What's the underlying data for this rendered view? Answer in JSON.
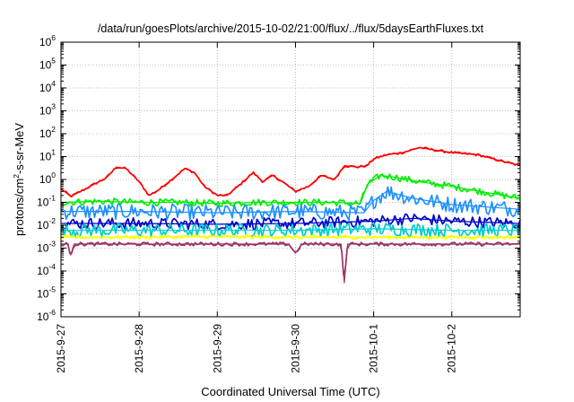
{
  "chart_data": {
    "type": "line",
    "title": "/data/run/goesPlots/archive/2015-10-02/21:00/flux/../flux/5daysEarthFluxes.txt",
    "xlabel": "Coordinated Universal Time (UTC)",
    "ylabel": {
      "pre": "protons/cm",
      "sup": "2",
      "post": "-s-sr-MeV"
    },
    "x_ticks": [
      "2015-9-27",
      "2015-9-28",
      "2015-9-29",
      "2015-9-30",
      "2015-10-1",
      "2015-10-2"
    ],
    "x_range": [
      "2015-09-27T00:00",
      "2015-10-02T21:00"
    ],
    "y_scale": "log",
    "y_range": [
      1e-06,
      1000000.0
    ],
    "y_ticks": [
      {
        "base": "10",
        "exp": "-6"
      },
      {
        "base": "10",
        "exp": "-5"
      },
      {
        "base": "10",
        "exp": "-4"
      },
      {
        "base": "10",
        "exp": "-3"
      },
      {
        "base": "10",
        "exp": "-2"
      },
      {
        "base": "10",
        "exp": "-1"
      },
      {
        "base": "10",
        "exp": "0"
      },
      {
        "base": "10",
        "exp": "1"
      },
      {
        "base": "10",
        "exp": "2"
      },
      {
        "base": "10",
        "exp": "3"
      },
      {
        "base": "10",
        "exp": "4"
      },
      {
        "base": "10",
        "exp": "5"
      },
      {
        "base": "10",
        "exp": "6"
      }
    ],
    "grid": true,
    "series": [
      {
        "color": "#ff0000",
        "noise": 0.05,
        "points": [
          [
            "2015-09-27T00:00",
            0.4
          ],
          [
            "2015-09-27T03:00",
            0.18
          ],
          [
            "2015-09-27T06:00",
            0.3
          ],
          [
            "2015-09-27T10:00",
            0.6
          ],
          [
            "2015-09-27T14:00",
            1.2
          ],
          [
            "2015-09-27T17:00",
            3.5
          ],
          [
            "2015-09-27T20:00",
            3.0
          ],
          [
            "2015-09-28T00:00",
            0.8
          ],
          [
            "2015-09-28T03:00",
            0.2
          ],
          [
            "2015-09-28T06:00",
            0.35
          ],
          [
            "2015-09-28T10:00",
            1.0
          ],
          [
            "2015-09-28T14:00",
            3.0
          ],
          [
            "2015-09-28T17:00",
            2.0
          ],
          [
            "2015-09-28T20:00",
            0.5
          ],
          [
            "2015-09-29T00:00",
            0.2
          ],
          [
            "2015-09-29T03:00",
            0.2
          ],
          [
            "2015-09-29T07:00",
            0.6
          ],
          [
            "2015-09-29T11:00",
            2.0
          ],
          [
            "2015-09-29T14:00",
            0.8
          ],
          [
            "2015-09-29T17:00",
            1.5
          ],
          [
            "2015-09-29T20:00",
            0.8
          ],
          [
            "2015-09-30T00:00",
            0.3
          ],
          [
            "2015-09-30T04:00",
            0.5
          ],
          [
            "2015-09-30T08:00",
            1.5
          ],
          [
            "2015-09-30T12:00",
            1.0
          ],
          [
            "2015-09-30T15:00",
            4.0
          ],
          [
            "2015-09-30T19:00",
            3.5
          ],
          [
            "2015-09-30T22:00",
            4.0
          ],
          [
            "2015-10-01T00:00",
            8.0
          ],
          [
            "2015-10-01T04:00",
            12.0
          ],
          [
            "2015-10-01T09:00",
            15.0
          ],
          [
            "2015-10-01T14:00",
            25.0
          ],
          [
            "2015-10-01T18:00",
            20.0
          ],
          [
            "2015-10-02T00:00",
            15.0
          ],
          [
            "2015-10-02T08:00",
            12.0
          ],
          [
            "2015-10-02T16:00",
            6.0
          ],
          [
            "2015-10-02T21:00",
            4.0
          ]
        ]
      },
      {
        "color": "#00ee00",
        "noise": 0.15,
        "points": [
          [
            "2015-09-27T00:00",
            0.1
          ],
          [
            "2015-09-27T12:00",
            0.11
          ],
          [
            "2015-09-28T00:00",
            0.1
          ],
          [
            "2015-09-28T12:00",
            0.1
          ],
          [
            "2015-09-29T00:00",
            0.09
          ],
          [
            "2015-09-29T12:00",
            0.1
          ],
          [
            "2015-09-30T00:00",
            0.1
          ],
          [
            "2015-09-30T12:00",
            0.1
          ],
          [
            "2015-09-30T20:00",
            0.09
          ],
          [
            "2015-09-30T22:00",
            0.6
          ],
          [
            "2015-10-01T02:00",
            1.5
          ],
          [
            "2015-10-01T06:00",
            1.3
          ],
          [
            "2015-10-01T14:00",
            0.8
          ],
          [
            "2015-10-02T00:00",
            0.5
          ],
          [
            "2015-10-02T12:00",
            0.25
          ],
          [
            "2015-10-02T21:00",
            0.15
          ]
        ]
      },
      {
        "color": "#1e90ff",
        "noise": 0.35,
        "points": [
          [
            "2015-09-27T00:00",
            0.04
          ],
          [
            "2015-09-28T00:00",
            0.04
          ],
          [
            "2015-09-29T00:00",
            0.035
          ],
          [
            "2015-09-30T00:00",
            0.04
          ],
          [
            "2015-09-30T21:00",
            0.035
          ],
          [
            "2015-10-01T00:00",
            0.12
          ],
          [
            "2015-10-01T04:00",
            0.3
          ],
          [
            "2015-10-01T12:00",
            0.15
          ],
          [
            "2015-10-02T00:00",
            0.08
          ],
          [
            "2015-10-02T21:00",
            0.05
          ]
        ]
      },
      {
        "color": "#0000cc",
        "noise": 0.25,
        "points": [
          [
            "2015-09-27T00:00",
            0.012
          ],
          [
            "2015-09-28T00:00",
            0.012
          ],
          [
            "2015-09-29T00:00",
            0.011
          ],
          [
            "2015-09-30T00:00",
            0.012
          ],
          [
            "2015-10-01T00:00",
            0.015
          ],
          [
            "2015-10-01T12:00",
            0.02
          ],
          [
            "2015-10-02T00:00",
            0.015
          ],
          [
            "2015-10-02T21:00",
            0.012
          ]
        ]
      },
      {
        "color": "#00cccc",
        "noise": 0.3,
        "points": [
          [
            "2015-09-27T00:00",
            0.006
          ],
          [
            "2015-09-28T00:00",
            0.006
          ],
          [
            "2015-09-29T00:00",
            0.006
          ],
          [
            "2015-09-30T00:00",
            0.006
          ],
          [
            "2015-10-01T00:00",
            0.007
          ],
          [
            "2015-10-02T00:00",
            0.006
          ],
          [
            "2015-10-02T21:00",
            0.006
          ]
        ]
      },
      {
        "color": "#ffff00",
        "noise": 0.08,
        "points": [
          [
            "2015-09-27T00:00",
            0.003
          ],
          [
            "2015-09-28T00:00",
            0.003
          ],
          [
            "2015-09-29T00:00",
            0.0032
          ],
          [
            "2015-09-30T00:00",
            0.003
          ],
          [
            "2015-10-01T00:00",
            0.003
          ],
          [
            "2015-10-02T00:00",
            0.003
          ],
          [
            "2015-10-02T21:00",
            0.003
          ]
        ]
      },
      {
        "color": "#993366",
        "noise": 0.08,
        "points": [
          [
            "2015-09-27T00:00",
            0.0015
          ],
          [
            "2015-09-27T02:00",
            0.0015
          ],
          [
            "2015-09-27T03:00",
            0.0005
          ],
          [
            "2015-09-27T04:00",
            0.0015
          ],
          [
            "2015-09-28T00:00",
            0.0015
          ],
          [
            "2015-09-29T00:00",
            0.0015
          ],
          [
            "2015-09-29T22:00",
            0.0015
          ],
          [
            "2015-09-30T00:00",
            0.0006
          ],
          [
            "2015-09-30T02:00",
            0.0015
          ],
          [
            "2015-09-30T14:00",
            0.0015
          ],
          [
            "2015-09-30T15:00",
            3e-05
          ],
          [
            "2015-09-30T16:00",
            0.0015
          ],
          [
            "2015-10-01T00:00",
            0.0015
          ],
          [
            "2015-10-02T00:00",
            0.0015
          ],
          [
            "2015-10-02T21:00",
            0.0015
          ]
        ]
      }
    ]
  }
}
